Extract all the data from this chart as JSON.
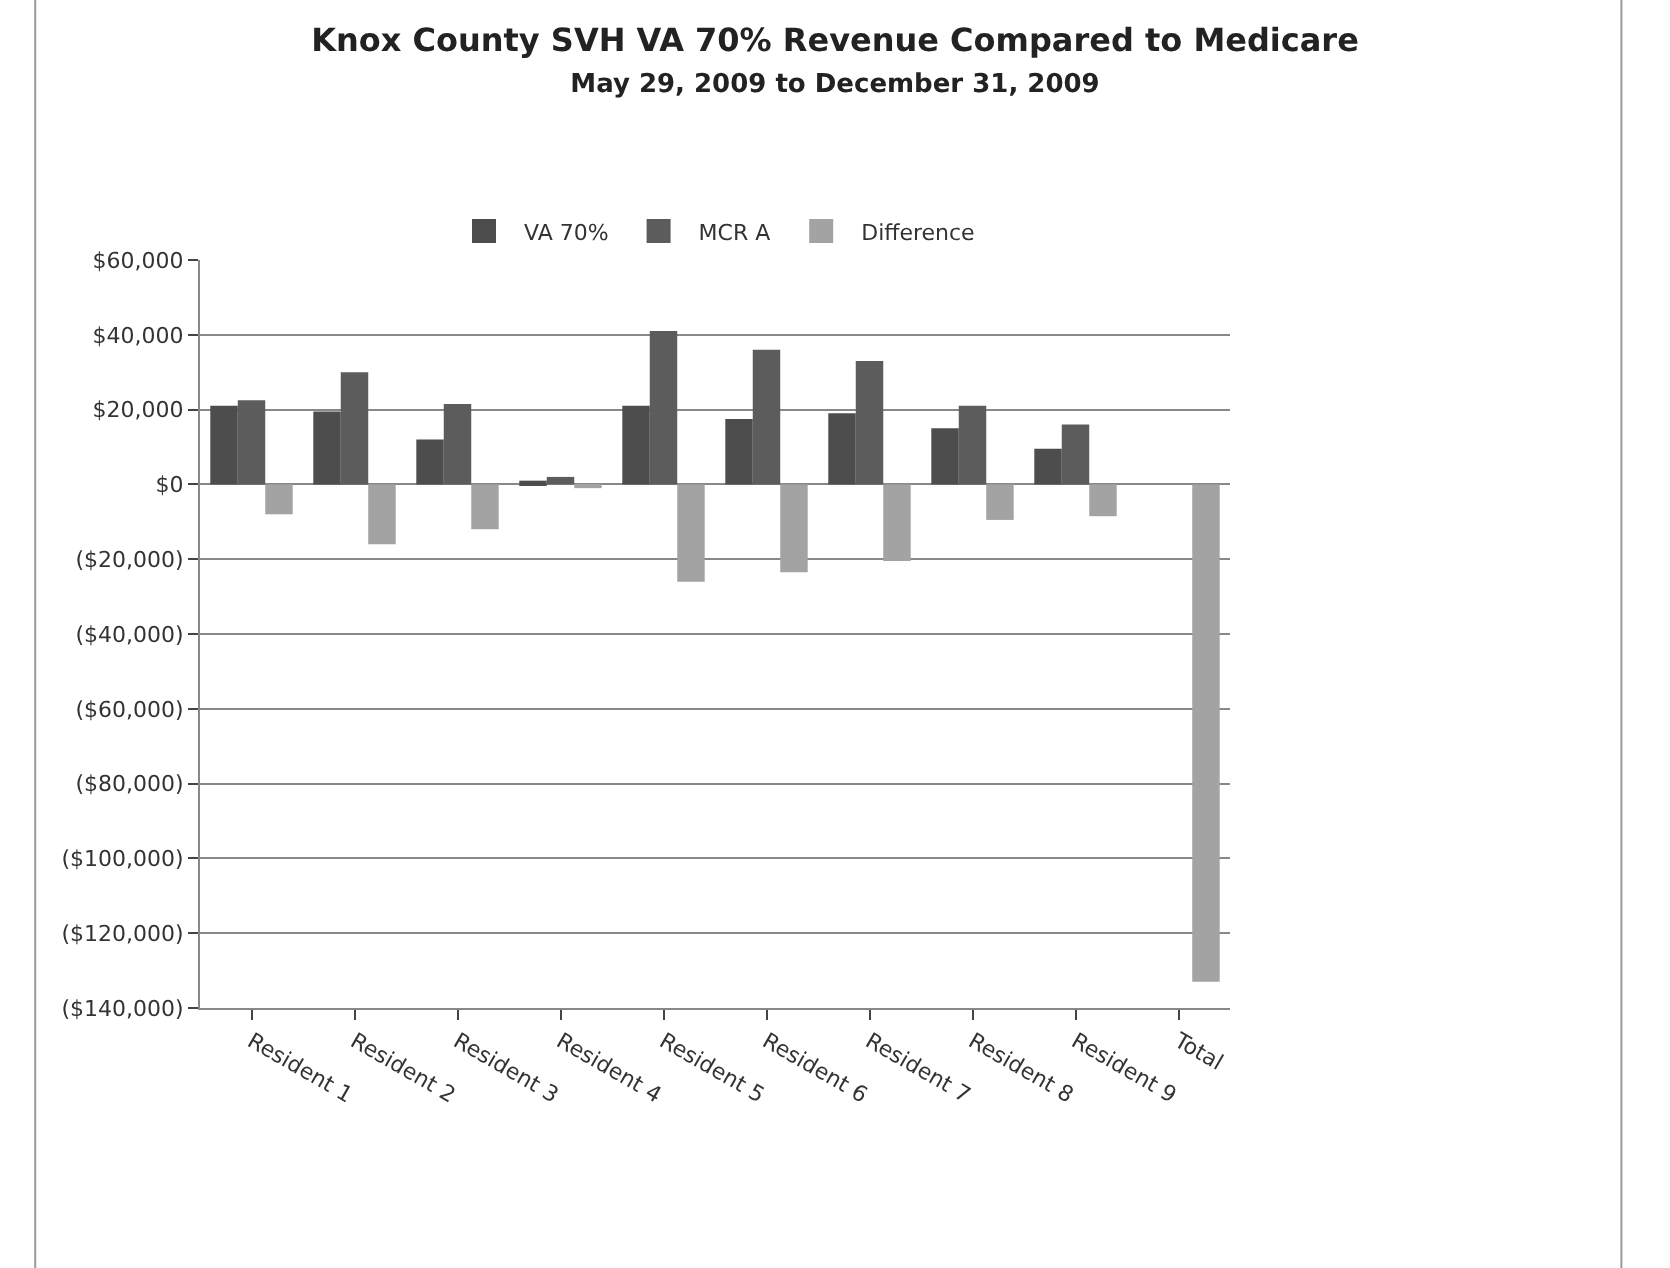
{
  "chart_data": {
    "type": "bar",
    "title": "Knox County SVH VA 70% Revenue Compared to Medicare",
    "subtitle": "May 29, 2009 to December 31, 2009",
    "categories": [
      "Resident 1",
      "Resident 2",
      "Resident 3",
      "Resident 4",
      "Resident 5",
      "Resident 6",
      "Resident 7",
      "Resident 8",
      "Resident 9",
      "Total"
    ],
    "series": [
      {
        "name": "VA 70%",
        "color": "#4d4d4d",
        "values": [
          21000,
          19500,
          12000,
          1000,
          21000,
          17500,
          19000,
          15000,
          9500,
          null
        ]
      },
      {
        "name": "MCR A",
        "color": "#5c5c5c",
        "values": [
          22500,
          30000,
          21500,
          2000,
          41000,
          36000,
          33000,
          21000,
          16000,
          null
        ]
      },
      {
        "name": "Difference",
        "color": "#a3a3a3",
        "values": [
          -8000,
          -16000,
          -12000,
          -1000,
          -26000,
          -23500,
          -20500,
          -9500,
          -8500,
          -133000
        ]
      }
    ],
    "ylim": [
      -140000,
      60000
    ],
    "yticks": [
      {
        "value": -140000,
        "label": "($140,000)"
      },
      {
        "value": -120000,
        "label": "($120,000)"
      },
      {
        "value": -100000,
        "label": "($100,000)"
      },
      {
        "value": -80000,
        "label": "($80,000)"
      },
      {
        "value": -60000,
        "label": "($60,000)"
      },
      {
        "value": -40000,
        "label": "($40,000)"
      },
      {
        "value": -20000,
        "label": "($20,000)"
      },
      {
        "value": 0,
        "label": "$0"
      },
      {
        "value": 20000,
        "label": "$20,000"
      },
      {
        "value": 40000,
        "label": "$40,000"
      },
      {
        "value": 60000,
        "label": "$60,000"
      }
    ],
    "grid": "y",
    "legend": "top"
  }
}
